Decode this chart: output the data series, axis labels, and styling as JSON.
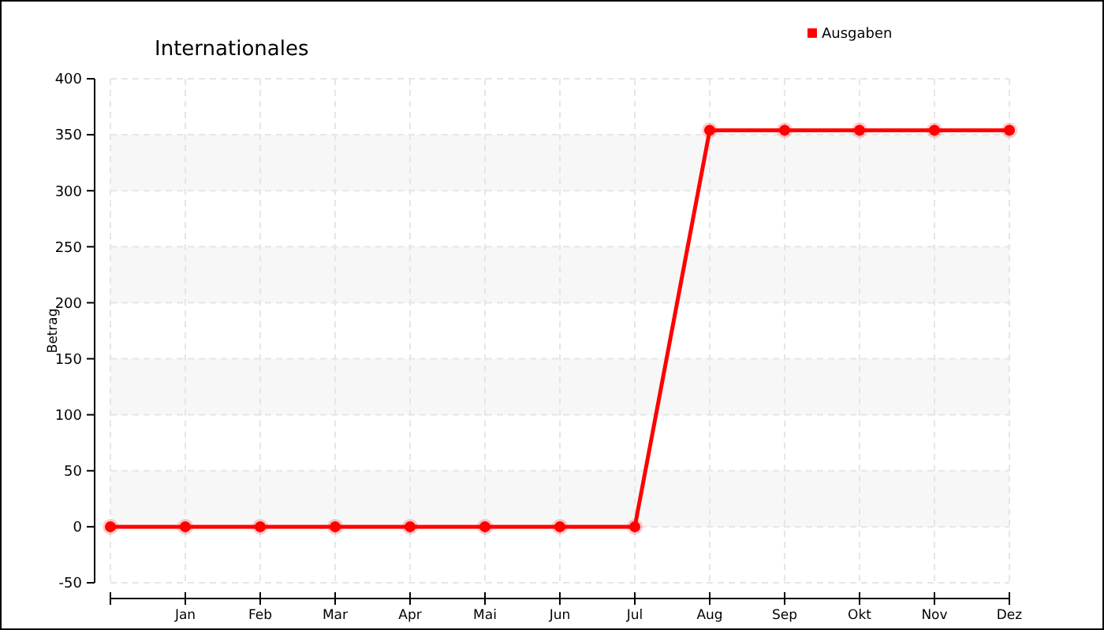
{
  "chart_data": {
    "type": "line",
    "title": "Internationales",
    "ylabel": "Betrag",
    "categories": [
      null,
      "Jan",
      "Feb",
      "Mar",
      "Apr",
      "Mai",
      "Jun",
      "Jul",
      "Aug",
      "Sep",
      "Okt",
      "Nov",
      "Dez"
    ],
    "series": [
      {
        "name": "Ausgaben",
        "color": "#ff0000",
        "values": [
          0,
          0,
          0,
          0,
          0,
          0,
          0,
          0,
          354,
          354,
          354,
          354,
          354
        ]
      }
    ],
    "ylim": [
      -50,
      400
    ],
    "yticks": [
      -50,
      0,
      50,
      100,
      150,
      200,
      250,
      300,
      350,
      400
    ],
    "grid": true,
    "legend": "top right",
    "marker": "circle"
  }
}
